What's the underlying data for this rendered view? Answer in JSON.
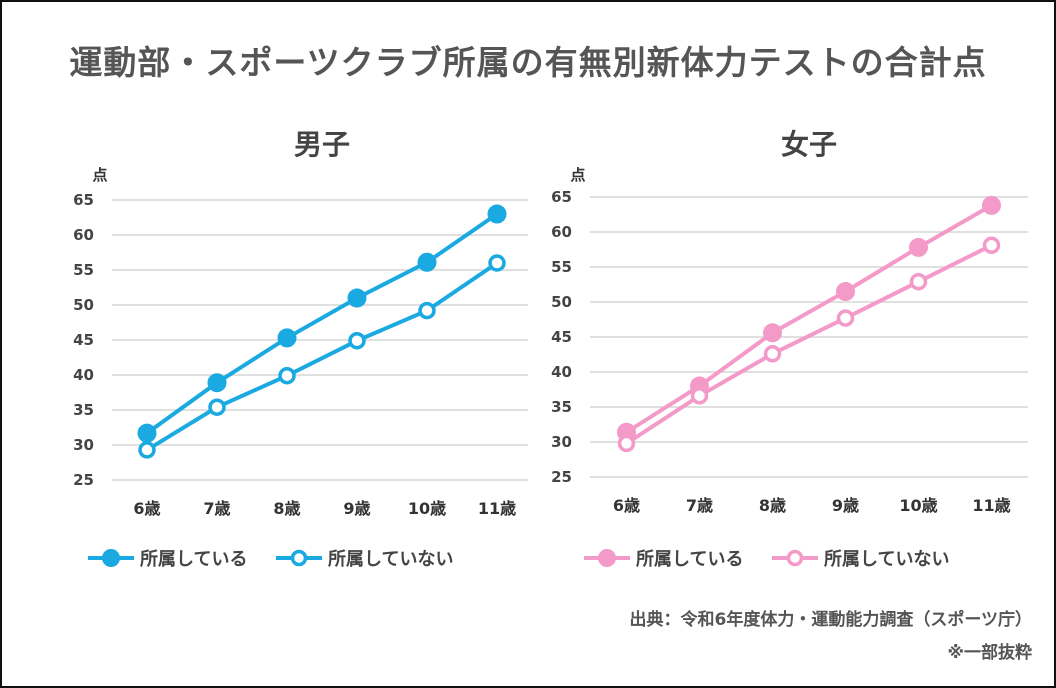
{
  "title": "運動部・スポーツクラブ所属の有無別新体力テストの合計点",
  "source": "出典：令和6年度体力・運動能力調査（スポーツ庁）",
  "note": "※一部抜粋",
  "chart_data": [
    {
      "type": "line",
      "title": "男子",
      "ylabel": "点",
      "categories": [
        "6歳",
        "7歳",
        "8歳",
        "9歳",
        "10歳",
        "11歳"
      ],
      "yticks": [
        25,
        30,
        35,
        40,
        45,
        50,
        55,
        60,
        65
      ],
      "ylim": [
        25,
        65
      ],
      "color": "#1aa9e0",
      "series": [
        {
          "name": "所属している",
          "marker": "filled",
          "values": [
            31.7,
            38.9,
            45.3,
            51.0,
            56.1,
            63.0
          ]
        },
        {
          "name": "所属していない",
          "marker": "hollow",
          "values": [
            29.3,
            35.4,
            39.9,
            44.9,
            49.2,
            56.0
          ]
        }
      ]
    },
    {
      "type": "line",
      "title": "女子",
      "ylabel": "点",
      "categories": [
        "6歳",
        "7歳",
        "8歳",
        "9歳",
        "10歳",
        "11歳"
      ],
      "yticks": [
        25,
        30,
        35,
        40,
        45,
        50,
        55,
        60,
        65
      ],
      "ylim": [
        25,
        65
      ],
      "color": "#f49ac9",
      "series": [
        {
          "name": "所属している",
          "marker": "filled",
          "values": [
            31.4,
            38.0,
            45.6,
            51.5,
            57.8,
            63.8
          ]
        },
        {
          "name": "所属していない",
          "marker": "hollow",
          "values": [
            29.8,
            36.6,
            42.6,
            47.7,
            52.9,
            58.1
          ]
        }
      ]
    }
  ]
}
